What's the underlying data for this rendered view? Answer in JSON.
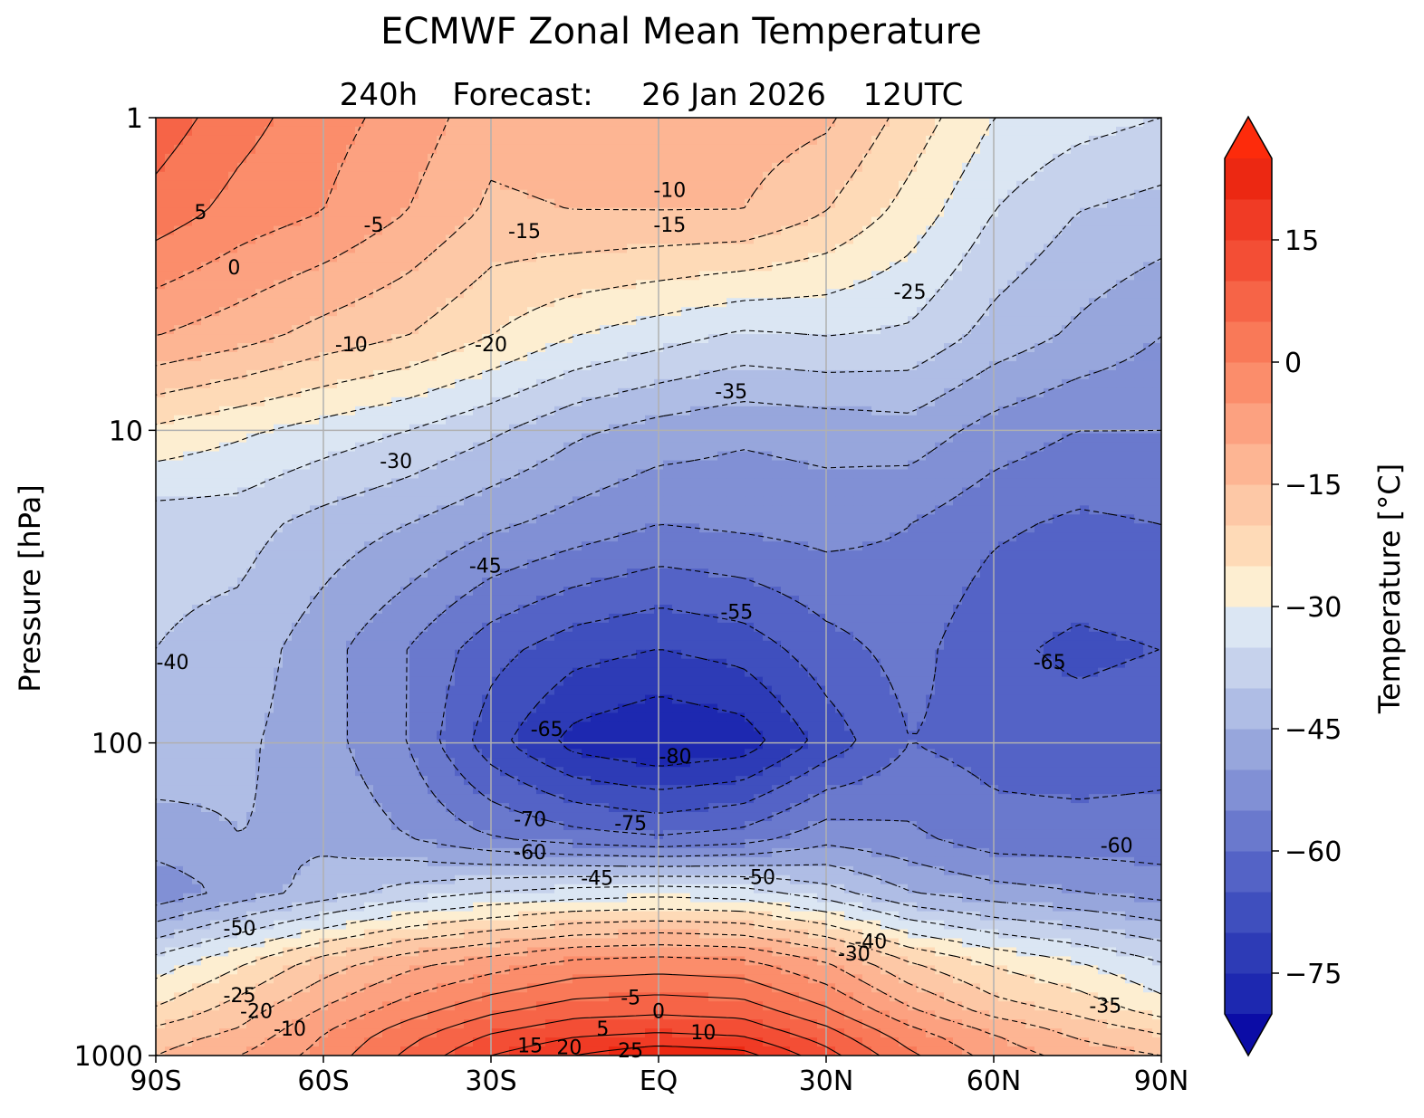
{
  "chart_data": {
    "type": "heatmap",
    "title": "ECMWF Zonal Mean Temperature",
    "subtitle": {
      "lead": "240h",
      "label": "Forecast:",
      "date": "26 Jan 2026",
      "time": "12UTC"
    },
    "xlabel": "",
    "ylabel": "Pressure [hPa]",
    "x_ticks": [
      "90S",
      "60S",
      "30S",
      "EQ",
      "30N",
      "60N",
      "90N"
    ],
    "x_values": [
      -90,
      -60,
      -30,
      0,
      30,
      60,
      90
    ],
    "xlim": [
      -90,
      90
    ],
    "y_scale": "log",
    "y_inverted": true,
    "ylim": [
      1,
      1000
    ],
    "y_ticks": [
      1,
      10,
      100,
      1000
    ],
    "y_tick_labels": [
      "1",
      "10",
      "100",
      "1000"
    ],
    "grid": true,
    "colorbar": {
      "label": "Temperature [°C]",
      "ticks": [
        15,
        0,
        -15,
        -30,
        -45,
        -60,
        -75
      ],
      "tick_labels": [
        "15",
        "0",
        "−15",
        "−30",
        "−45",
        "−60",
        "−75"
      ],
      "range": [
        -80,
        25
      ],
      "step": 5,
      "extend": "both",
      "colors": [
        "#0b0ca6",
        "#1d28b0",
        "#2d3bb6",
        "#3f4fbe",
        "#5463c6",
        "#6a79cd",
        "#8190d5",
        "#97a6dc",
        "#afbde5",
        "#c6d2ec",
        "#dbe6f3",
        "#fdeed1",
        "#fedab7",
        "#fdc8a6",
        "#fdb593",
        "#fca180",
        "#fb8d6b",
        "#f97958",
        "#f66447",
        "#f34e35",
        "#f03b25",
        "#ec2812",
        "#fd2b0b"
      ]
    },
    "latitudes": [
      -90,
      -75,
      -60,
      -45,
      -30,
      -15,
      0,
      15,
      30,
      45,
      60,
      75,
      90
    ],
    "pressure_levels": [
      1,
      2,
      5,
      10,
      20,
      50,
      100,
      200,
      300,
      500,
      700,
      850,
      1000
    ],
    "values": [
      [
        8,
        2,
        -3,
        -7,
        -13,
        -12,
        -10,
        -12,
        -14,
        -22,
        -30,
        -33,
        -35
      ],
      [
        3,
        -2,
        -5,
        -10,
        -16,
        -15,
        -15,
        -15,
        -20,
        -27,
        -35,
        -40,
        -42
      ],
      [
        -10,
        -13,
        -17,
        -20,
        -25,
        -30,
        -33,
        -36,
        -35,
        -36,
        -42,
        -46,
        -50
      ],
      [
        -26,
        -29,
        -32,
        -35,
        -39,
        -44,
        -47,
        -49,
        -48,
        -47,
        -52,
        -55,
        -55
      ],
      [
        -38,
        -38,
        -42,
        -45,
        -49,
        -52,
        -55,
        -54,
        -53,
        -55,
        -59,
        -61,
        -60
      ],
      [
        -40,
        -42,
        -48,
        -55,
        -63,
        -68,
        -70,
        -68,
        -62,
        -58,
        -64,
        -66,
        -65
      ],
      [
        -42,
        -44,
        -48,
        -55,
        -68,
        -77,
        -80,
        -78,
        -68,
        -60,
        -62,
        -63,
        -62
      ],
      [
        -47,
        -45,
        -46,
        -50,
        -55,
        -58,
        -60,
        -58,
        -52,
        -54,
        -58,
        -58,
        -58
      ],
      [
        -54,
        -48,
        -43,
        -38,
        -35,
        -33,
        -32,
        -33,
        -38,
        -45,
        -48,
        -50,
        -52
      ],
      [
        -33,
        -26,
        -18,
        -12,
        -8,
        -4,
        -3,
        -4,
        -10,
        -20,
        -26,
        -30,
        -35
      ],
      [
        -25,
        -18,
        -10,
        -3,
        3,
        7,
        8,
        7,
        0,
        -10,
        -18,
        -22,
        -28
      ],
      [
        -18,
        -14,
        -5,
        3,
        10,
        14,
        15,
        14,
        7,
        -3,
        -10,
        -16,
        -20
      ],
      [
        -15,
        -10,
        -3,
        6,
        15,
        20,
        24,
        22,
        12,
        1,
        -7,
        -12,
        -15
      ]
    ],
    "contour_labels": [
      "5",
      "0",
      "-5",
      "-15",
      "-10",
      "-15",
      "-25",
      "-10",
      "-20",
      "-35",
      "-30",
      "-45",
      "-55",
      "-65",
      "-40",
      "-65",
      "-80",
      "-70",
      "-75",
      "-60",
      "-50",
      "-45",
      "-60",
      "-50",
      "-40",
      "-30",
      "-25",
      "-20",
      "-10",
      "-5",
      "0",
      "5",
      "10",
      "15",
      "20",
      "25",
      "-35"
    ]
  }
}
